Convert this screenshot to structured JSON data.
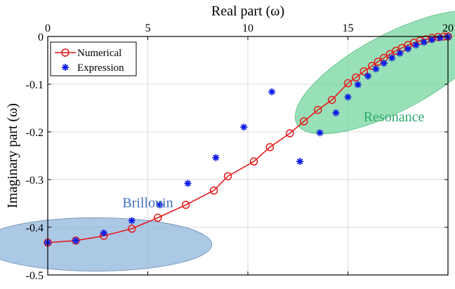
{
  "colors": {
    "numerical": "#e8191b",
    "expression": "#0a1ae6",
    "brillouin_fill": "#8fb5dc",
    "resonance_fill": "#6cd398",
    "brillouin_text": "#3e6fbf",
    "resonance_text": "#2fa86a",
    "grid": "#d9d9d9"
  },
  "chart_data": {
    "type": "scatter",
    "title": "",
    "xlabel": "Real part (ω)",
    "ylabel": "Imaginary part (ω)",
    "xlim": [
      0,
      20
    ],
    "ylim": [
      -0.5,
      0
    ],
    "x_axis_position": "top",
    "grid": true,
    "legend_position": "top-left",
    "xticks": [
      {
        "value": 0,
        "label": "0"
      },
      {
        "value": 5,
        "label": "5"
      },
      {
        "value": 10,
        "label": "10"
      },
      {
        "value": 15,
        "label": "15"
      },
      {
        "value": 20,
        "label": "20"
      }
    ],
    "yticks": [
      {
        "value": 0,
        "label": "0"
      },
      {
        "value": -0.1,
        "label": "-0.1"
      },
      {
        "value": -0.2,
        "label": "-0.2"
      },
      {
        "value": -0.3,
        "label": "-0.3"
      },
      {
        "value": -0.4,
        "label": "-0.4"
      },
      {
        "value": -0.5,
        "label": "-0.5"
      }
    ],
    "series": [
      {
        "name": "Numerical",
        "style": "line-circle",
        "x": [
          0,
          1.4,
          2.8,
          4.2,
          5.5,
          6.9,
          8.3,
          9.0,
          10.3,
          11.1,
          12.1,
          12.8,
          13.5,
          14.2,
          15.0,
          15.4,
          15.8,
          16.2,
          16.5,
          16.8,
          17.1,
          17.4,
          17.7,
          18.0,
          18.3,
          18.6,
          18.9,
          19.2,
          19.5,
          19.8,
          20.0
        ],
        "y": [
          -0.432,
          -0.428,
          -0.418,
          -0.403,
          -0.38,
          -0.353,
          -0.323,
          -0.293,
          -0.262,
          -0.232,
          -0.203,
          -0.178,
          -0.154,
          -0.133,
          -0.098,
          -0.086,
          -0.073,
          -0.062,
          -0.053,
          -0.045,
          -0.037,
          -0.03,
          -0.024,
          -0.018,
          -0.013,
          -0.009,
          -0.006,
          -0.003,
          -0.001,
          0.0,
          0.0
        ]
      },
      {
        "name": "Expression",
        "style": "star",
        "x": [
          0,
          1.4,
          2.8,
          4.2,
          5.6,
          7.0,
          8.4,
          9.8,
          11.2,
          12.6,
          13.6,
          14.4,
          15.0,
          15.5,
          16.0,
          16.4,
          16.8,
          17.2,
          17.6,
          18.0,
          18.4,
          18.8,
          19.2,
          19.6,
          20.0
        ],
        "y": [
          -0.432,
          -0.428,
          -0.412,
          -0.386,
          -0.353,
          -0.308,
          -0.254,
          -0.19,
          -0.116,
          -0.262,
          -0.202,
          -0.16,
          -0.127,
          -0.101,
          -0.083,
          -0.068,
          -0.056,
          -0.045,
          -0.035,
          -0.026,
          -0.018,
          -0.012,
          -0.007,
          -0.003,
          -0.001
        ]
      }
    ],
    "annotations": [
      {
        "text": "Brillouin",
        "label_at": [
          5.0,
          -0.358
        ],
        "color_key": "brillouin_text",
        "ellipse": {
          "center": [
            2.4,
            -0.436
          ],
          "radius": [
            5.8,
            0.056
          ],
          "fill_key": "brillouin_fill"
        }
      },
      {
        "text": "Resonance",
        "label_at": [
          17.3,
          -0.178
        ],
        "color_key": "resonance_text",
        "ellipse": {
          "center": [
            17.3,
            -0.075
          ],
          "radius": [
            5.5,
            0.08
          ],
          "rotation": -28,
          "fill_key": "resonance_fill"
        }
      }
    ]
  }
}
